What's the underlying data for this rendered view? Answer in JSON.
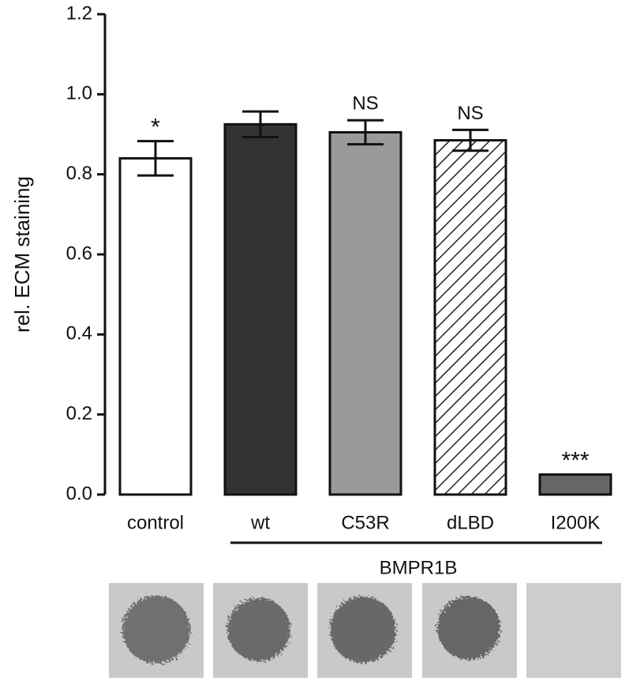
{
  "chart_data": {
    "type": "bar",
    "y_label": "rel. ECM staining",
    "categories": [
      "control",
      "wt",
      "C53R",
      "dLBD",
      "I200K"
    ],
    "values": [
      0.84,
      0.925,
      0.905,
      0.885,
      0.05
    ],
    "errors": [
      0.043,
      0.032,
      0.03,
      0.026,
      0
    ],
    "colors": [
      "#ffffff",
      "#333333",
      "#9a9a9a",
      "hatch",
      "#666666"
    ],
    "annotations": [
      "*",
      null,
      "NS",
      "NS",
      "***"
    ],
    "group_label": "BMPR1B",
    "ylim": [
      0,
      1.2
    ],
    "yticks": [
      {
        "value": 0,
        "label": "0.0"
      },
      0.2,
      0.4,
      0.6,
      0.8,
      {
        "value": 1,
        "label": "1.0"
      },
      1.2
    ],
    "grid": false
  }
}
